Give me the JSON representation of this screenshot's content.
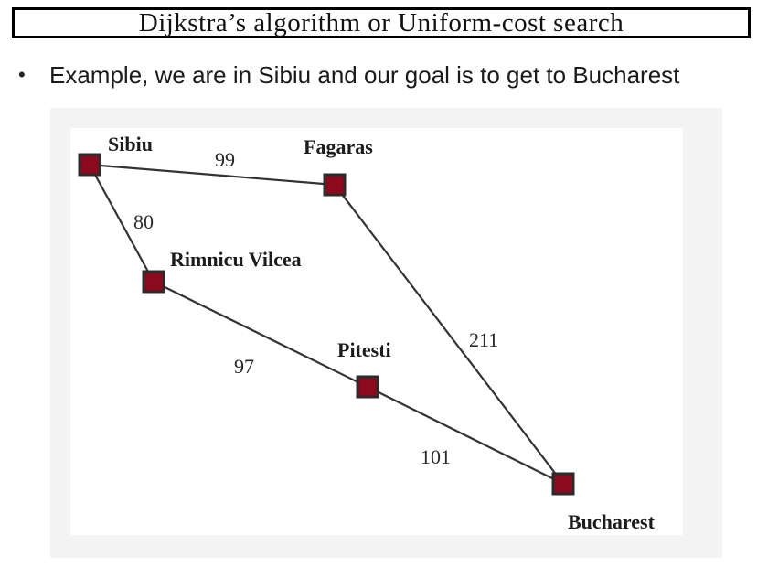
{
  "title": "Dijkstra’s algorithm or Uniform-cost search",
  "bullet": {
    "marker": "•",
    "text": "Example, we are in Sibiu and our goal is to get to Bucharest"
  },
  "graph": {
    "node_color": "#8b0a1e",
    "edge_color": "#333333",
    "nodes": [
      {
        "id": "sibiu",
        "label": "Sibiu"
      },
      {
        "id": "fagaras",
        "label": "Fagaras"
      },
      {
        "id": "rimnicu",
        "label": "Rimnicu Vilcea"
      },
      {
        "id": "pitesti",
        "label": "Pitesti"
      },
      {
        "id": "bucharest",
        "label": "Bucharest"
      }
    ],
    "edges": [
      {
        "from": "sibiu",
        "to": "fagaras",
        "cost": "99"
      },
      {
        "from": "sibiu",
        "to": "rimnicu",
        "cost": "80"
      },
      {
        "from": "rimnicu",
        "to": "pitesti",
        "cost": "97"
      },
      {
        "from": "pitesti",
        "to": "bucharest",
        "cost": "101"
      },
      {
        "from": "fagaras",
        "to": "bucharest",
        "cost": "211"
      }
    ]
  }
}
